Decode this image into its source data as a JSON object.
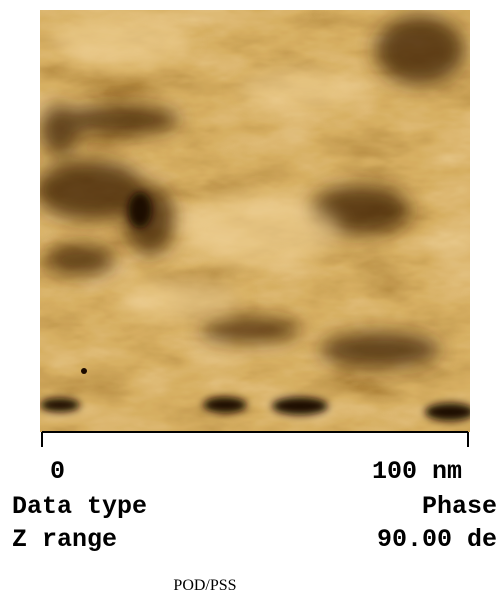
{
  "image": {
    "scale_start": "0",
    "scale_end": "100 nm"
  },
  "info": {
    "rows": [
      [
        "Data type",
        "Phase"
      ],
      [
        "Z range",
        "90.00 de"
      ]
    ]
  },
  "caption": "POD/PSS"
}
